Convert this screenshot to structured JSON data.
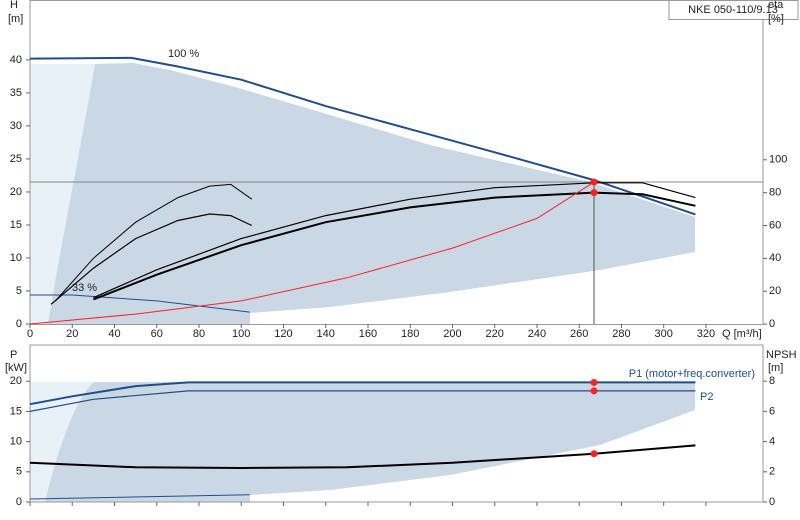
{
  "chart_data": [
    {
      "type": "line",
      "model": "NKE 050-110/9.13",
      "ylabel": "H",
      "yunit": "[m]",
      "y2label": "eta",
      "y2unit": "[%]",
      "xlabel": "Q [m³/h]",
      "annotations": [
        "100 %",
        "33 %"
      ],
      "xlim": [
        0,
        347
      ],
      "xticks": [
        0,
        20,
        40,
        60,
        80,
        100,
        120,
        140,
        160,
        180,
        200,
        220,
        240,
        260,
        280,
        300,
        320
      ],
      "ylim": [
        0,
        49
      ],
      "yticks": [
        0,
        5,
        10,
        15,
        20,
        25,
        30,
        35,
        40
      ],
      "y2lim": [
        0,
        197
      ],
      "y2ticks": [
        0,
        20,
        40,
        60,
        80,
        100
      ],
      "series": [
        {
          "color": "#1f4e8c",
          "width": 2,
          "x": [
            0,
            48,
            70,
            100,
            140,
            180,
            220,
            267,
            315
          ],
          "values": [
            40.2,
            40.3,
            39,
            37,
            33,
            29.5,
            26,
            21.8,
            16.6
          ]
        },
        {
          "color": "#1f4e8c",
          "width": 1,
          "x": [
            0,
            20,
            60,
            104
          ],
          "values": [
            4.4,
            4.4,
            3.5,
            1.8
          ]
        },
        {
          "color": "#000000",
          "width": 2,
          "axis": "y2",
          "x": [
            30,
            60,
            100,
            140,
            180,
            220,
            267,
            290,
            315
          ],
          "values": [
            15,
            30,
            48,
            62,
            71,
            77,
            80,
            79,
            72
          ]
        },
        {
          "color": "#000000",
          "width": 1.2,
          "axis": "y2",
          "x": [
            30,
            60,
            100,
            140,
            180,
            220,
            267,
            290,
            315
          ],
          "values": [
            16,
            33,
            52,
            66,
            76,
            83,
            86,
            86,
            77
          ]
        },
        {
          "color": "#000000",
          "width": 1,
          "axis": "y2",
          "x": [
            12,
            30,
            50,
            70,
            85,
            95,
            105
          ],
          "values": [
            14,
            40,
            62,
            77,
            84,
            85,
            76
          ]
        },
        {
          "color": "#000000",
          "width": 1.2,
          "axis": "y2",
          "x": [
            10,
            30,
            50,
            70,
            85,
            95,
            105
          ],
          "values": [
            12,
            34,
            52,
            63,
            67,
            66,
            60
          ]
        },
        {
          "color": "#ff2020",
          "width": 1,
          "x": [
            0,
            50,
            100,
            150,
            200,
            240,
            267
          ],
          "values": [
            0,
            1.5,
            3.5,
            7,
            11.5,
            16,
            21.5
          ]
        }
      ],
      "duty_points": [
        {
          "x": 267,
          "y": 21.5
        },
        {
          "x": 267,
          "y": 80,
          "axis": "y2"
        }
      ]
    },
    {
      "type": "line",
      "ylabel": "P",
      "yunit": "[kW]",
      "y2label": "NPSH",
      "y2unit": "[m]",
      "xlim": [
        0,
        347
      ],
      "xticks": [
        0,
        20,
        40,
        60,
        80,
        100,
        120,
        140,
        160,
        180,
        200,
        220,
        240,
        260,
        280,
        300,
        320
      ],
      "ylim": [
        0,
        26
      ],
      "yticks": [
        0,
        5,
        10,
        15,
        20
      ],
      "y2lim": [
        0,
        10.4
      ],
      "y2ticks": [
        0,
        2,
        4,
        6,
        8
      ],
      "series": [
        {
          "name": "P1 (motor+freq.converter)",
          "color": "#1f4e8c",
          "width": 2,
          "x": [
            0,
            20,
            50,
            75,
            315
          ],
          "values": [
            16.2,
            17.5,
            19.2,
            19.8,
            19.8
          ]
        },
        {
          "name": "P2",
          "color": "#1f4e8c",
          "width": 1.2,
          "x": [
            0,
            30,
            75,
            315
          ],
          "values": [
            15,
            17,
            18.4,
            18.4
          ]
        },
        {
          "color": "#1f4e8c",
          "width": 1,
          "x": [
            0,
            104
          ],
          "values": [
            0.5,
            1.2
          ]
        },
        {
          "color": "#000000",
          "width": 2,
          "axis": "y2",
          "x": [
            0,
            50,
            100,
            150,
            200,
            267,
            315
          ],
          "values": [
            2.6,
            2.3,
            2.25,
            2.3,
            2.6,
            3.2,
            3.75
          ]
        }
      ],
      "duty_points": [
        {
          "x": 267,
          "y": 19.8
        },
        {
          "x": 267,
          "y": 18.4
        },
        {
          "x": 267,
          "y": 3.2,
          "axis": "y2"
        }
      ]
    }
  ]
}
